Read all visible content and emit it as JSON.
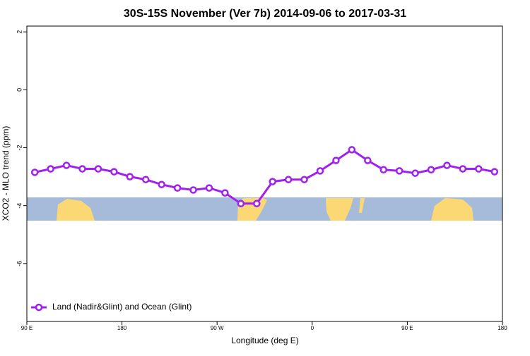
{
  "chart_data": {
    "type": "line",
    "title": "30S-15S November (Ver 7b)   2014-09-06 to 2017-03-31",
    "x_label": "Longitude (deg E)",
    "y_label": "XCO2 - MLO trend (ppm)",
    "x": [
      97.5,
      112.5,
      127.5,
      142.5,
      157.5,
      172.5,
      187.5,
      202.5,
      217.5,
      232.5,
      247.5,
      262.5,
      277.5,
      292.5,
      307.5,
      322.5,
      337.5,
      352.5,
      367.5,
      382.5,
      397.5,
      412.5,
      427.5,
      442.5,
      457.5,
      472.5,
      487.5,
      502.5,
      517.5,
      532.5
    ],
    "series": [
      {
        "name": "Land (Nadir&Glint) and Ocean (Glint)",
        "color": "#a020f0",
        "values": [
          -2.85,
          -2.73,
          -2.61,
          -2.73,
          -2.73,
          -2.83,
          -3.0,
          -3.1,
          -3.27,
          -3.39,
          -3.46,
          -3.39,
          -3.56,
          -3.93,
          -3.93,
          -3.17,
          -3.1,
          -3.1,
          -2.8,
          -2.44,
          -2.07,
          -2.44,
          -2.76,
          -2.8,
          -2.88,
          -2.76,
          -2.61,
          -2.73,
          -2.73,
          -2.83
        ]
      }
    ],
    "xlim": [
      90,
      540
    ],
    "ylim": [
      -8,
      2.2
    ],
    "xticks": [
      {
        "value": 90,
        "label": "90 E"
      },
      {
        "value": 180,
        "label": "180"
      },
      {
        "value": 270,
        "label": "90 W"
      },
      {
        "value": 360,
        "label": "0"
      },
      {
        "value": 450,
        "label": "90 E"
      },
      {
        "value": 540,
        "label": "180"
      }
    ],
    "yticks": [
      2,
      0,
      -2,
      -4,
      -6
    ],
    "legend": "bottom-left"
  }
}
